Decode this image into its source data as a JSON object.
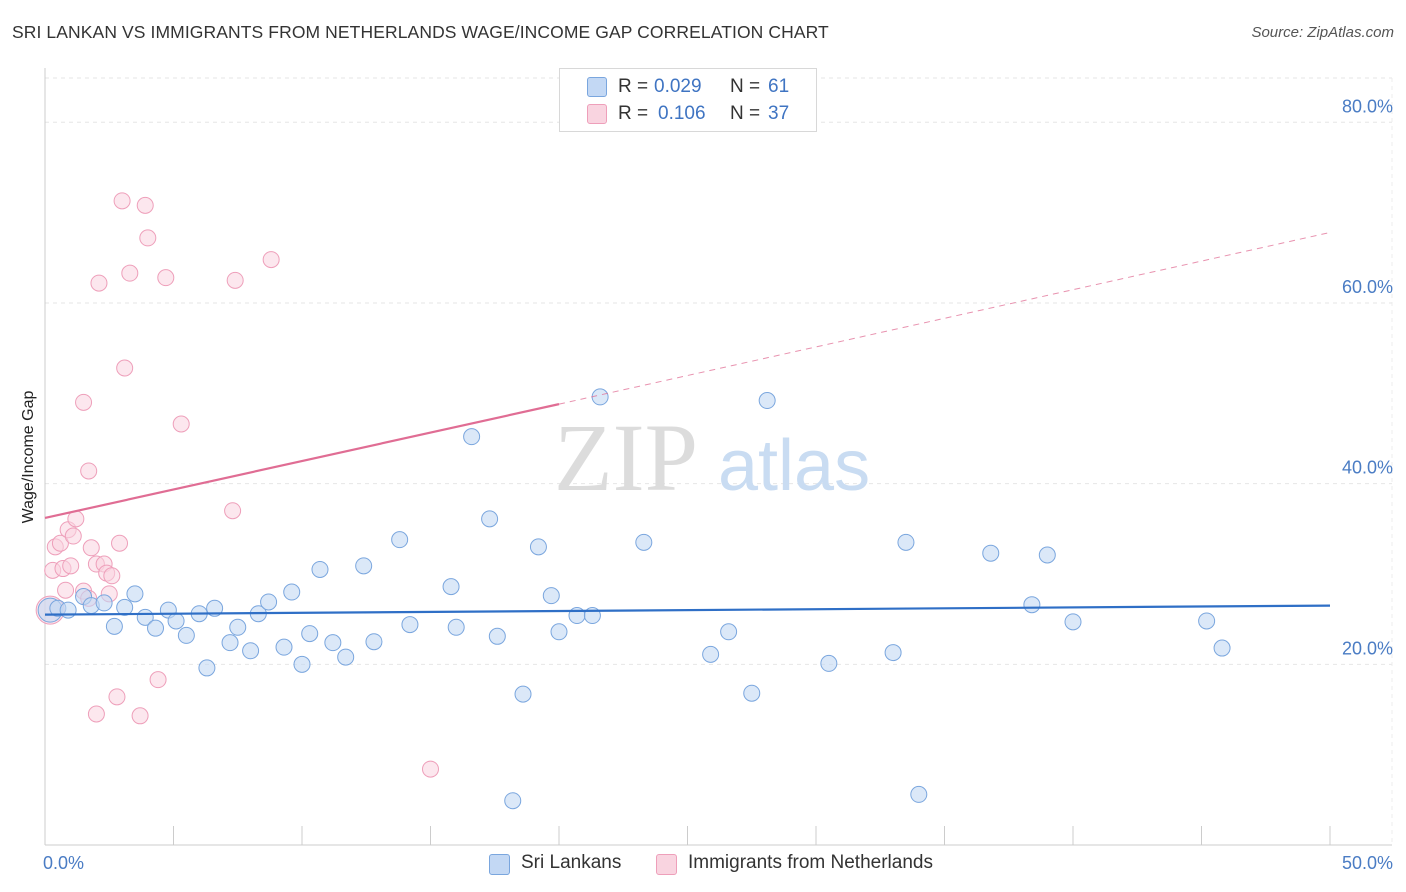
{
  "title": "SRI LANKAN VS IMMIGRANTS FROM NETHERLANDS WAGE/INCOME GAP CORRELATION CHART",
  "source": "Source: ZipAtlas.com",
  "watermark": {
    "zip": "ZIP",
    "atlas": "atlas"
  },
  "legend": {
    "rows": [
      {
        "r_label": "R =",
        "r_value": "0.029",
        "n_label": "N =",
        "n_value": "61",
        "color": "#a9c8f0"
      },
      {
        "r_label": "R =",
        "r_value": "0.106",
        "n_label": "N =",
        "n_value": "37",
        "color": "#f5b8cc"
      }
    ]
  },
  "bottom_legend": {
    "series1": "Sri Lankans",
    "series2": "Immigrants from Netherlands"
  },
  "chart_data": {
    "type": "scatter",
    "ylabel": "Wage/Income Gap",
    "xlim": [
      0,
      50
    ],
    "ylim": [
      0,
      80
    ],
    "y_ticks": [
      {
        "value": 20,
        "label": "20.0%"
      },
      {
        "value": 40,
        "label": "40.0%"
      },
      {
        "value": 60,
        "label": "60.0%"
      },
      {
        "value": 80,
        "label": "80.0%"
      }
    ],
    "x_tick_labels": [
      {
        "value": 0,
        "label": "0.0%"
      },
      {
        "value": 50,
        "label": "50.0%"
      }
    ],
    "grid": true,
    "colors": {
      "series1": "#7aa6de",
      "series1_fill": "#c3d8f4",
      "series2": "#ee9fba",
      "series2_fill": "#f9d4e0",
      "trend1": "#2f6fc6",
      "trend2": "#e06d94"
    },
    "series": [
      {
        "name": "Sri Lankans",
        "trend": {
          "x0": 0,
          "y0": 25.5,
          "x1": 50,
          "y1": 26.5
        },
        "points": [
          [
            0.2,
            26
          ],
          [
            0.5,
            26.2
          ],
          [
            0.9,
            26
          ],
          [
            1.5,
            27.5
          ],
          [
            1.8,
            26.5
          ],
          [
            2.3,
            26.8
          ],
          [
            2.7,
            24.2
          ],
          [
            3.1,
            26.3
          ],
          [
            3.5,
            27.8
          ],
          [
            3.9,
            25.2
          ],
          [
            4.3,
            24
          ],
          [
            4.8,
            26
          ],
          [
            5.1,
            24.8
          ],
          [
            5.5,
            23.2
          ],
          [
            6.0,
            25.6
          ],
          [
            6.3,
            19.6
          ],
          [
            6.6,
            26.2
          ],
          [
            7.2,
            22.4
          ],
          [
            7.5,
            24.1
          ],
          [
            8.0,
            21.5
          ],
          [
            8.3,
            25.6
          ],
          [
            8.7,
            26.9
          ],
          [
            9.3,
            21.9
          ],
          [
            9.6,
            28
          ],
          [
            10.0,
            20
          ],
          [
            10.3,
            23.4
          ],
          [
            10.7,
            30.5
          ],
          [
            11.2,
            22.4
          ],
          [
            11.7,
            20.8
          ],
          [
            12.4,
            30.9
          ],
          [
            12.8,
            22.5
          ],
          [
            13.8,
            33.8
          ],
          [
            14.2,
            24.4
          ],
          [
            15.8,
            28.6
          ],
          [
            16.0,
            24.1
          ],
          [
            16.6,
            45.2
          ],
          [
            17.3,
            36.1
          ],
          [
            17.6,
            23.1
          ],
          [
            18.2,
            4.9
          ],
          [
            18.6,
            16.7
          ],
          [
            19.2,
            33
          ],
          [
            19.7,
            27.6
          ],
          [
            20.0,
            23.6
          ],
          [
            20.7,
            25.4
          ],
          [
            21.3,
            25.4
          ],
          [
            21.6,
            49.6
          ],
          [
            23.3,
            33.5
          ],
          [
            25.9,
            21.1
          ],
          [
            26.6,
            23.6
          ],
          [
            27.5,
            16.8
          ],
          [
            28.1,
            49.2
          ],
          [
            30.5,
            20.1
          ],
          [
            33.0,
            21.3
          ],
          [
            33.5,
            33.5
          ],
          [
            34.0,
            5.6
          ],
          [
            36.8,
            32.3
          ],
          [
            38.4,
            26.6
          ],
          [
            39.0,
            32.1
          ],
          [
            40.0,
            24.7
          ],
          [
            45.2,
            24.8
          ],
          [
            45.8,
            21.8
          ]
        ]
      },
      {
        "name": "Immigrants from Netherlands",
        "trend": {
          "x0": 0,
          "y0": 36.2,
          "x1": 20,
          "y1": 48.8,
          "dash_x1": 50,
          "dash_y1": 67.8
        },
        "points": [
          [
            0.2,
            26
          ],
          [
            0.3,
            30.4
          ],
          [
            0.4,
            33
          ],
          [
            0.6,
            33.4
          ],
          [
            0.7,
            30.6
          ],
          [
            0.8,
            28.2
          ],
          [
            0.9,
            34.9
          ],
          [
            1.0,
            30.9
          ],
          [
            1.1,
            34.2
          ],
          [
            1.2,
            36.1
          ],
          [
            1.5,
            28.1
          ],
          [
            1.5,
            49
          ],
          [
            1.7,
            27.3
          ],
          [
            1.7,
            41.4
          ],
          [
            1.8,
            32.9
          ],
          [
            2.0,
            14.5
          ],
          [
            2.0,
            31.1
          ],
          [
            2.1,
            62.2
          ],
          [
            2.3,
            31.1
          ],
          [
            2.4,
            30.1
          ],
          [
            2.6,
            29.8
          ],
          [
            2.8,
            16.4
          ],
          [
            2.9,
            33.4
          ],
          [
            2.5,
            27.8
          ],
          [
            3.0,
            71.3
          ],
          [
            3.1,
            52.8
          ],
          [
            3.3,
            63.3
          ],
          [
            3.7,
            14.3
          ],
          [
            3.9,
            70.8
          ],
          [
            4.0,
            67.2
          ],
          [
            4.4,
            18.3
          ],
          [
            4.7,
            62.8
          ],
          [
            5.3,
            46.6
          ],
          [
            7.3,
            37
          ],
          [
            7.4,
            62.5
          ],
          [
            8.8,
            64.8
          ],
          [
            15.0,
            8.4
          ]
        ]
      }
    ]
  }
}
